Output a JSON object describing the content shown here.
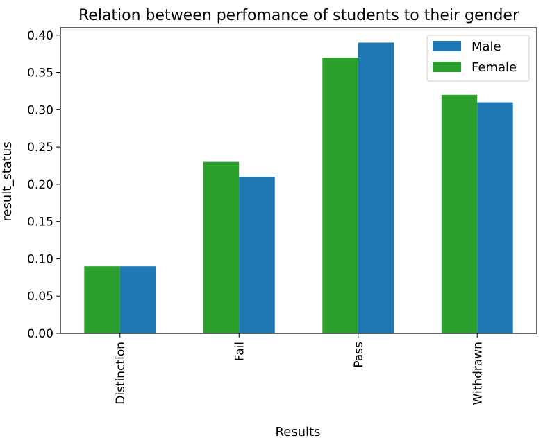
{
  "chart_data": {
    "type": "bar",
    "title": "Relation between perfomance of students to their gender",
    "xlabel": "Results",
    "ylabel": "result_status",
    "categories": [
      "Distinction",
      "Fail",
      "Pass",
      "Withdrawn"
    ],
    "series": [
      {
        "name": "Female",
        "values": [
          0.09,
          0.23,
          0.37,
          0.32
        ],
        "color": "#2ca02c"
      },
      {
        "name": "Male",
        "values": [
          0.09,
          0.21,
          0.39,
          0.31
        ],
        "color": "#1f77b4"
      }
    ],
    "ylim": [
      0,
      0.41
    ],
    "yticks": [
      "0.00",
      "0.05",
      "0.10",
      "0.15",
      "0.20",
      "0.25",
      "0.30",
      "0.35",
      "0.40"
    ],
    "legend": {
      "position": "top-right",
      "entries": [
        "Male",
        "Female"
      ]
    },
    "grid": false
  }
}
